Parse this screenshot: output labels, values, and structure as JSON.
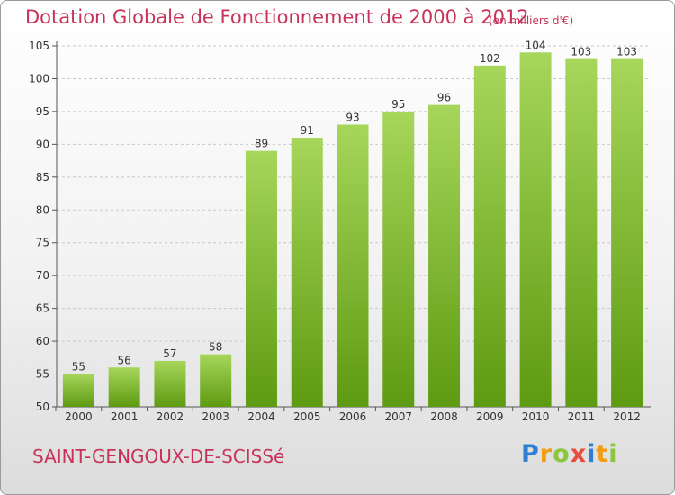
{
  "chart_data": {
    "type": "bar",
    "title": "Dotation Globale de Fonctionnement de 2000 à 2012",
    "subtitle": "(en milliers d'€)",
    "categories": [
      "2000",
      "2001",
      "2002",
      "2003",
      "2004",
      "2005",
      "2006",
      "2007",
      "2008",
      "2009",
      "2010",
      "2011",
      "2012"
    ],
    "values": [
      55,
      56,
      57,
      58,
      89,
      91,
      93,
      95,
      96,
      102,
      104,
      103,
      103
    ],
    "data_labels": [
      "55",
      "56",
      "57",
      "58",
      "89",
      "91",
      "93",
      "95",
      "96",
      "102",
      "104",
      "103",
      "103"
    ],
    "xlabel": "",
    "ylabel": "",
    "ylim": [
      50,
      105
    ],
    "yticks": [
      "50",
      "55",
      "60",
      "65",
      "70",
      "75",
      "80",
      "85",
      "90",
      "95",
      "100",
      "105"
    ],
    "grid": true,
    "colors": {
      "bar_light": "#a6d65a",
      "bar_dark": "#5e9a12",
      "title": "#c8325a"
    }
  },
  "footer": {
    "commune": "SAINT-GENGOUX-DE-SCISSé",
    "logo": {
      "text": "Proxiti",
      "letters": [
        {
          "ch": "P",
          "color": "#2e7fd1"
        },
        {
          "ch": "r",
          "color": "#f39c12"
        },
        {
          "ch": "o",
          "color": "#8cc63f"
        },
        {
          "ch": "x",
          "color": "#e74c3c"
        },
        {
          "ch": "i",
          "color": "#2e7fd1"
        },
        {
          "ch": "t",
          "color": "#f39c12"
        },
        {
          "ch": "i",
          "color": "#8cc63f"
        }
      ]
    }
  }
}
